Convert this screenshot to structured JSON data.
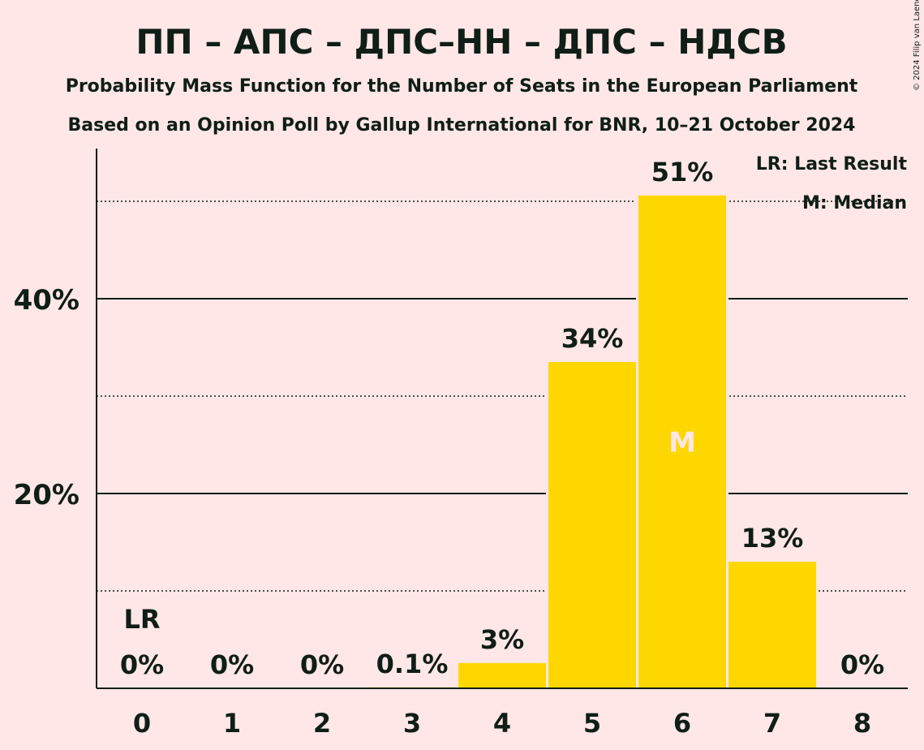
{
  "copyright": "© 2024 Filip van Laenen",
  "chart_data": {
    "type": "bar",
    "title": "ПП – АПС – ДПС–НН – ДПС – НДСВ",
    "subtitle1": "Probability Mass Function for the Number of Seats in the European Parliament",
    "subtitle2": "Based on an Opinion Poll by Gallup International for BNR, 10–21 October 2024",
    "categories": [
      "0",
      "1",
      "2",
      "3",
      "4",
      "5",
      "6",
      "7",
      "8"
    ],
    "values": [
      0,
      0,
      0,
      0.1,
      2.6,
      33.5,
      50.6,
      13.0,
      0
    ],
    "value_labels": [
      "0%",
      "0%",
      "0%",
      "0.1%",
      "3%",
      "34%",
      "51%",
      "13%",
      "0%"
    ],
    "ylim": [
      0,
      55
    ],
    "yticks": [
      {
        "value": 20,
        "label": "20%"
      },
      {
        "value": 40,
        "label": "40%"
      }
    ],
    "dotted_gridlines": [
      10,
      30,
      50
    ],
    "last_result_index": 0,
    "last_result_label": "LR",
    "median_index": 6,
    "median_label": "M",
    "legend": {
      "position": "top-right",
      "lines": [
        "LR: Last Result",
        "M: Median"
      ]
    },
    "colors": {
      "background": "#FFE7E7",
      "bar": "#FFD700",
      "text": "#0F1E16",
      "median_text": "#FFE7E7"
    }
  }
}
